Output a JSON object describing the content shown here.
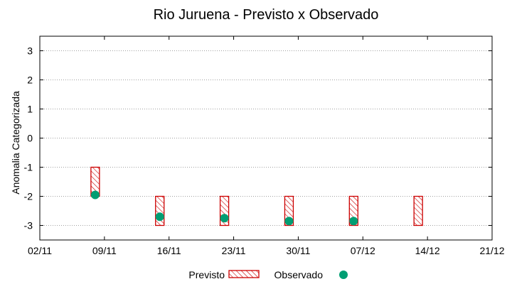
{
  "chart_data": {
    "type": "range-bar-with-points",
    "title": "Rio Juruena - Previsto x Observado",
    "xlabel": "",
    "ylabel": "Anomalia Categorizada",
    "ylim": [
      -3.5,
      3.5
    ],
    "yticks": [
      -3,
      -2,
      -1,
      0,
      1,
      2,
      3
    ],
    "ytick_labels": [
      "-3",
      "-2",
      "-1",
      "0",
      "1",
      "2",
      "3"
    ],
    "xlim_days": [
      0,
      49
    ],
    "xticks": [
      {
        "label": "02/11",
        "day": 0
      },
      {
        "label": "09/11",
        "day": 7
      },
      {
        "label": "16/11",
        "day": 14
      },
      {
        "label": "23/11",
        "day": 21
      },
      {
        "label": "30/11",
        "day": 28
      },
      {
        "label": "07/12",
        "day": 35
      },
      {
        "label": "14/12",
        "day": 42
      },
      {
        "label": "21/12",
        "day": 49
      }
    ],
    "grid": "horizontal dotted",
    "legend_position": "bottom-center",
    "series": [
      {
        "name": "Previsto",
        "kind": "range",
        "color": "#cc0000",
        "points": [
          {
            "day": 6,
            "low": -2,
            "high": -1
          },
          {
            "day": 13,
            "low": -3,
            "high": -2
          },
          {
            "day": 20,
            "low": -3,
            "high": -2
          },
          {
            "day": 27,
            "low": -3,
            "high": -2
          },
          {
            "day": 34,
            "low": -3,
            "high": -2
          },
          {
            "day": 41,
            "low": -3,
            "high": -2
          }
        ]
      },
      {
        "name": "Observado",
        "kind": "point",
        "color": "#009e73",
        "points": [
          {
            "day": 6,
            "value": -1.95
          },
          {
            "day": 13,
            "value": -2.7
          },
          {
            "day": 20,
            "value": -2.75
          },
          {
            "day": 27,
            "value": -2.85
          },
          {
            "day": 34,
            "value": -2.85
          }
        ]
      }
    ]
  }
}
